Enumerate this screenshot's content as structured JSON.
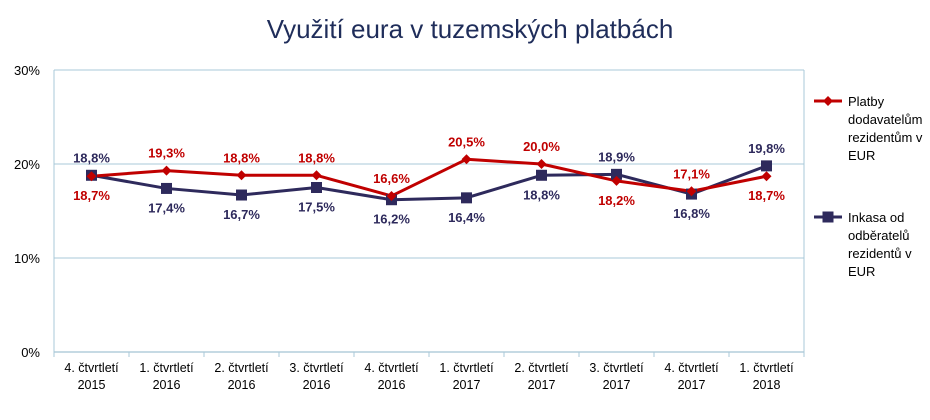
{
  "chart_data": {
    "type": "line",
    "title": "Využití eura v tuzemských platbách",
    "categories": [
      [
        "4. čtvrtletí",
        "2015"
      ],
      [
        "1. čtvrtletí",
        "2016"
      ],
      [
        "2. čtvrtletí",
        "2016"
      ],
      [
        "3. čtvrtletí",
        "2016"
      ],
      [
        "4. čtvrtletí",
        "2016"
      ],
      [
        "1. čtvrtletí",
        "2017"
      ],
      [
        "2. čtvrtletí",
        "2017"
      ],
      [
        "3. čtvrtletí",
        "2017"
      ],
      [
        "4. čtvrtletí",
        "2017"
      ],
      [
        "1. čtvrtletí",
        "2018"
      ]
    ],
    "ylim": [
      0,
      30
    ],
    "yticks": [
      0,
      10,
      20,
      30
    ],
    "ytick_labels": [
      "0%",
      "10%",
      "20%",
      "30%"
    ],
    "grid": true,
    "legend_position": "right",
    "series": [
      {
        "name": "Platby dodavatelům rezidentům v EUR",
        "legend_lines": [
          "Platby",
          "dodavatelům",
          "rezidentům v",
          "EUR"
        ],
        "color": "#c00000",
        "marker": "diamond",
        "values": [
          18.7,
          19.3,
          18.8,
          18.8,
          16.6,
          20.5,
          20.0,
          18.2,
          17.1,
          18.7
        ],
        "labels": [
          "18,7%",
          "19,3%",
          "18,8%",
          "18,8%",
          "16,6%",
          "20,5%",
          "20,0%",
          "18,2%",
          "17,1%",
          "18,7%"
        ]
      },
      {
        "name": "Inkasa od odběratelů rezidentů v EUR",
        "legend_lines": [
          "Inkasa od",
          "odběratelů",
          "rezidentů v",
          "EUR"
        ],
        "color": "#2e2a5c",
        "marker": "square",
        "values": [
          18.8,
          17.4,
          16.7,
          17.5,
          16.2,
          16.4,
          18.8,
          18.9,
          16.8,
          19.8
        ],
        "labels": [
          "18,8%",
          "17,4%",
          "16,7%",
          "17,5%",
          "16,2%",
          "16,4%",
          "18,8%",
          "18,9%",
          "16,8%",
          "19,8%"
        ]
      }
    ]
  }
}
